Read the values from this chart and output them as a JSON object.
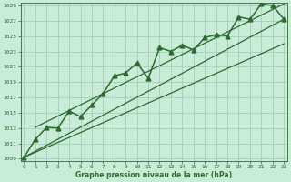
{
  "x": [
    0,
    1,
    2,
    3,
    4,
    5,
    6,
    7,
    8,
    9,
    10,
    11,
    12,
    13,
    14,
    15,
    16,
    17,
    18,
    19,
    20,
    21,
    22,
    23
  ],
  "y": [
    1009.2,
    1011.5,
    1013.1,
    1013.0,
    1015.2,
    1014.5,
    1016.0,
    1017.5,
    1019.8,
    1020.2,
    1021.5,
    1019.5,
    1023.5,
    1023.0,
    1023.8,
    1023.2,
    1024.8,
    1025.2,
    1025.0,
    1027.5,
    1027.2,
    1029.2,
    1029.0,
    1027.2
  ],
  "ylim_min": 1009,
  "ylim_max": 1029,
  "xlim_min": 0,
  "xlim_max": 23,
  "yticks": [
    1009,
    1011,
    1013,
    1015,
    1017,
    1019,
    1021,
    1023,
    1025,
    1027,
    1029
  ],
  "xticks": [
    0,
    1,
    2,
    3,
    4,
    5,
    6,
    7,
    8,
    9,
    10,
    11,
    12,
    13,
    14,
    15,
    16,
    17,
    18,
    19,
    20,
    21,
    22,
    23
  ],
  "xlabel": "Graphe pression niveau de la mer (hPa)",
  "line_color": "#2d6a2d",
  "bg_color": "#c8ecd8",
  "grid_color": "#a0c8b0",
  "trend_line": [
    0,
    1009.2,
    23,
    1027.2
  ],
  "lower_envelope": [
    0,
    1009.2,
    23,
    1024.0
  ],
  "upper_envelope": [
    1,
    1013.1,
    23,
    1029.2
  ]
}
